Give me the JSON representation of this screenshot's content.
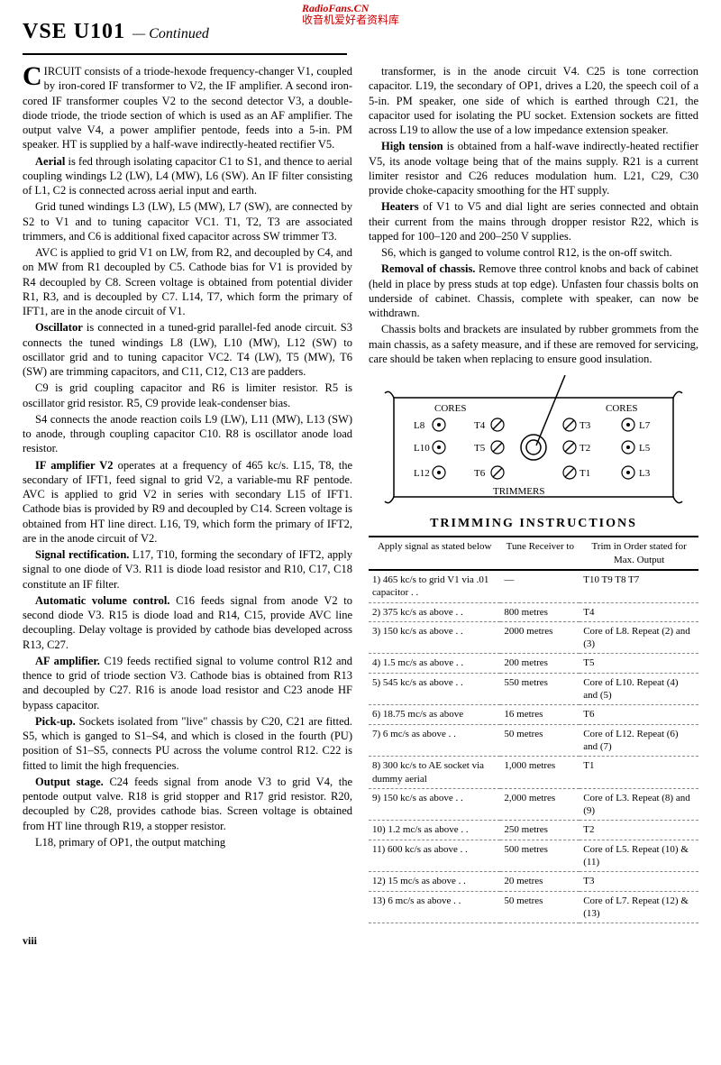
{
  "header": {
    "model": "VSE  U101",
    "continued": "— Continued",
    "watermark_line1": "RadioFans.CN",
    "watermark_line2": "收音机爱好者资料库"
  },
  "left_column": [
    {
      "dropcap": "C",
      "text": "IRCUIT consists of a triode-hexode frequency-changer V1, coupled by iron-cored IF transformer to V2, the IF amplifier. A second iron-cored IF transformer couples V2 to the second detector V3, a double-diode triode, the triode section of which is used as an AF amplifier. The output valve V4, a power amplifier pentode, feeds into a 5-in. PM speaker. HT is supplied by a half-wave indirectly-heated rectifier V5."
    },
    {
      "bold": "Aerial",
      "text": " is fed through isolating capacitor C1 to S1, and thence to aerial coupling windings L2 (LW), L4 (MW), L6 (SW). An IF filter consisting of L1, C2 is connected across aerial input and earth."
    },
    {
      "text": "Grid tuned windings L3 (LW), L5 (MW), L7 (SW), are connected by S2 to V1 and to tuning capacitor VC1. T1, T2, T3 are associated trimmers, and C6 is additional fixed capacitor across SW trimmer T3."
    },
    {
      "text": "AVC is applied to grid V1 on LW, from R2, and decoupled by C4, and on MW from R1 decoupled by C5. Cathode bias for V1 is provided by R4 decoupled by C8. Screen voltage is obtained from potential divider R1, R3, and is decoupled by C7. L14, T7, which form the primary of IFT1, are in the anode circuit of V1."
    },
    {
      "bold": "Oscillator",
      "text": " is connected in a tuned-grid parallel-fed anode circuit. S3 connects the tuned windings L8 (LW), L10 (MW), L12 (SW) to oscillator grid and to tuning capacitor VC2. T4 (LW), T5 (MW), T6 (SW) are trimming capacitors, and C11, C12, C13 are padders."
    },
    {
      "text": "C9 is grid coupling capacitor and R6 is limiter resistor. R5 is oscillator grid resistor. R5, C9 provide leak-condenser bias."
    },
    {
      "text": "S4 connects the anode reaction coils L9 (LW), L11 (MW), L13 (SW) to anode, through coupling capacitor C10. R8 is oscillator anode load resistor."
    },
    {
      "bold": "IF amplifier V2",
      "text": " operates at a frequency of 465 kc/s. L15, T8, the secondary of IFT1, feed signal to grid V2, a variable-mu RF pentode. AVC is applied to grid V2 in series with secondary L15 of IFT1. Cathode bias is provided by R9 and decoupled by C14. Screen voltage is obtained from HT line direct. L16, T9, which form the primary of IFT2, are in the anode circuit of V2."
    },
    {
      "bold": "Signal rectification.",
      "text": " L17, T10, forming the secondary of IFT2, apply signal to one diode of V3. R11 is diode load resistor and R10, C17, C18 constitute an IF filter."
    },
    {
      "bold": "Automatic volume control.",
      "text": " C16 feeds signal from anode V2 to second diode V3. R15 is diode load and R14, C15, provide AVC line decoupling. Delay voltage is provided by cathode bias developed across R13, C27."
    },
    {
      "bold": "AF amplifier.",
      "text": " C19 feeds rectified signal to volume control R12 and thence to grid of triode section V3. Cathode bias is obtained from R13 and decoupled by C27. R16 is anode load resistor and C23 anode HF bypass capacitor."
    },
    {
      "bold": "Pick-up.",
      "text": " Sockets isolated from \"live\" chassis by C20, C21 are fitted. S5, which is ganged to S1–S4, and which is closed in the fourth (PU) position of S1–S5, connects PU across the volume control R12. C22 is fitted to limit the high frequencies."
    },
    {
      "bold": "Output stage.",
      "text": " C24 feeds signal from anode V3 to grid V4, the pentode output valve. R18 is grid stopper and R17 grid resistor. R20, decoupled by C28, provides cathode bias. Screen voltage is obtained from HT line through R19, a stopper resistor."
    },
    {
      "text": "L18, primary of OP1, the output matching"
    }
  ],
  "right_column": [
    {
      "text": "transformer, is in the anode circuit V4. C25 is tone correction capacitor. L19, the secondary of OP1, drives a L20, the speech coil of a 5-in. PM speaker, one side of which is earthed through C21, the capacitor used for isolating the PU socket. Extension sockets are fitted across L19 to allow the use of a low impedance extension speaker."
    },
    {
      "bold": "High tension",
      "text": " is obtained from a half-wave indirectly-heated rectifier V5, its anode voltage being that of the mains supply. R21 is a current limiter resistor and C26 reduces modulation hum. L21, C29, C30 provide choke-capacity smoothing for the HT supply."
    },
    {
      "bold": "Heaters",
      "text": " of V1 to V5 and dial light are series connected and obtain their current from the mains through dropper resistor R22, which is tapped for 100–120 and 200–250 V supplies."
    },
    {
      "text": "S6, which is ganged to volume control R12, is the on-off switch."
    },
    {
      "bold": "Removal of chassis.",
      "text": " Remove three control knobs and back of cabinet (held in place by press studs at top edge). Unfasten four chassis bolts on underside of cabinet. Chassis, complete with speaker, can now be withdrawn."
    },
    {
      "text": "Chassis bolts and brackets are insulated by rubber grommets from the main chassis, as a safety measure, and if these are removed for servicing, care should be taken when replacing to ensure good insulation."
    }
  ],
  "diagram": {
    "left_cores_label": "CORES",
    "right_cores_label": "CORES",
    "trimmers_label": "TRIMMERS",
    "left_cores": [
      "L8",
      "L10",
      "L12"
    ],
    "trimmers_left": [
      "T4",
      "T5",
      "T6"
    ],
    "trimmers_right": [
      "T3",
      "T2",
      "T1"
    ],
    "right_cores": [
      "L7",
      "L5",
      "L3"
    ]
  },
  "trimming": {
    "title": "TRIMMING  INSTRUCTIONS",
    "headers": [
      "Apply signal as stated below",
      "Tune Receiver to",
      "Trim in Order stated for Max. Output"
    ],
    "rows": [
      [
        "1) 465 kc/s to grid V1 via .01 capacitor  . .",
        "—",
        "T10  T9  T8  T7"
      ],
      [
        "2) 375 kc/s as above  . .",
        "800 metres",
        "T4"
      ],
      [
        "3) 150 kc/s as above  . .",
        "2000 metres",
        "Core of L8. Repeat (2) and (3)"
      ],
      [
        "4) 1.5 mc/s as above  . .",
        "200 metres",
        "T5"
      ],
      [
        "5) 545 kc/s as above  . .",
        "550 metres",
        "Core of L10. Repeat (4) and (5)"
      ],
      [
        "6) 18.75 mc/s as above",
        "16 metres",
        "T6"
      ],
      [
        "7) 6 mc/s as above  . .",
        "50 metres",
        "Core of L12. Repeat (6) and (7)"
      ],
      [
        "8) 300 kc/s to AE socket via dummy aerial",
        "1,000 metres",
        "T1"
      ],
      [
        "9) 150 kc/s as above  . .",
        "2,000 metres",
        "Core of L3. Repeat (8) and (9)"
      ],
      [
        "10) 1.2 mc/s as above  . .",
        "250 metres",
        "T2"
      ],
      [
        "11) 600 kc/s as above  . .",
        "500 metres",
        "Core of L5. Repeat (10) & (11)"
      ],
      [
        "12) 15 mc/s as above  . .",
        "20 metres",
        "T3"
      ],
      [
        "13) 6 mc/s as above  . .",
        "50 metres",
        "Core of L7. Repeat (12) & (13)"
      ]
    ]
  },
  "pagenum": "viii"
}
